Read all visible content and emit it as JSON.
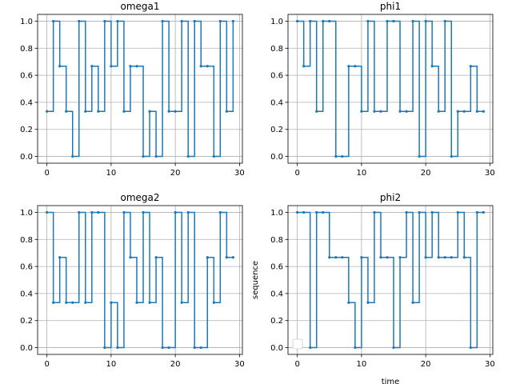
{
  "chart_data": [
    {
      "type": "line",
      "title": "omega1",
      "xlabel": "",
      "ylabel": "",
      "xlim": [
        -1.45,
        30.45
      ],
      "ylim": [
        -0.05,
        1.05
      ],
      "xticks": [
        0,
        10,
        20,
        30
      ],
      "yticks": [
        0.0,
        0.2,
        0.4,
        0.6,
        0.8,
        1.0
      ],
      "tick_labels_x": [
        "0",
        "10",
        "20",
        "30"
      ],
      "tick_labels_y": [
        "0.0",
        "0.2",
        "0.4",
        "0.6",
        "0.8",
        "1.0"
      ],
      "grid": true,
      "step": "post",
      "series": [
        {
          "color": "#1f77b4",
          "x": [
            0,
            1,
            2,
            3,
            4,
            5,
            6,
            7,
            8,
            9,
            10,
            11,
            12,
            13,
            14,
            15,
            16,
            17,
            18,
            19,
            20,
            21,
            22,
            23,
            24,
            25,
            26,
            27,
            28,
            29
          ],
          "values": [
            0.333,
            1,
            0.667,
            0.333,
            0,
            1,
            0.333,
            0.667,
            0.333,
            1,
            0.667,
            1,
            0.333,
            0.667,
            0.667,
            0,
            0.333,
            0,
            1,
            0.333,
            0.333,
            1,
            0,
            1,
            0.667,
            0.667,
            0,
            1,
            0.333,
            1
          ]
        }
      ]
    },
    {
      "type": "line",
      "title": "phi1",
      "xlabel": "",
      "ylabel": "",
      "xlim": [
        -1.45,
        30.45
      ],
      "ylim": [
        -0.05,
        1.05
      ],
      "xticks": [
        0,
        10,
        20,
        30
      ],
      "yticks": [
        0.0,
        0.2,
        0.4,
        0.6,
        0.8,
        1.0
      ],
      "tick_labels_x": [
        "0",
        "10",
        "20",
        "30"
      ],
      "tick_labels_y": [
        "0.0",
        "0.2",
        "0.4",
        "0.6",
        "0.8",
        "1.0"
      ],
      "grid": true,
      "step": "post",
      "series": [
        {
          "color": "#1f77b4",
          "x": [
            0,
            1,
            2,
            3,
            4,
            5,
            6,
            7,
            8,
            9,
            10,
            11,
            12,
            13,
            14,
            15,
            16,
            17,
            18,
            19,
            20,
            21,
            22,
            23,
            24,
            25,
            26,
            27,
            28,
            29
          ],
          "values": [
            1,
            0.667,
            1,
            0.333,
            1,
            1,
            0,
            0,
            0.667,
            0.667,
            0.333,
            1,
            0.333,
            0.333,
            1,
            1,
            0.333,
            0.333,
            1,
            0,
            1,
            0.667,
            0.333,
            1,
            0,
            0.333,
            0.333,
            0.667,
            0.333,
            0.333
          ]
        }
      ]
    },
    {
      "type": "line",
      "title": "omega2",
      "xlabel": "",
      "ylabel": "",
      "xlim": [
        -1.45,
        30.45
      ],
      "ylim": [
        -0.05,
        1.05
      ],
      "xticks": [
        0,
        10,
        20,
        30
      ],
      "yticks": [
        0.0,
        0.2,
        0.4,
        0.6,
        0.8,
        1.0
      ],
      "tick_labels_x": [
        "0",
        "10",
        "20",
        "30"
      ],
      "tick_labels_y": [
        "0.0",
        "0.2",
        "0.4",
        "0.6",
        "0.8",
        "1.0"
      ],
      "grid": true,
      "step": "post",
      "series": [
        {
          "color": "#1f77b4",
          "x": [
            0,
            1,
            2,
            3,
            4,
            5,
            6,
            7,
            8,
            9,
            10,
            11,
            12,
            13,
            14,
            15,
            16,
            17,
            18,
            19,
            20,
            21,
            22,
            23,
            24,
            25,
            26,
            27,
            28,
            29
          ],
          "values": [
            1,
            0.333,
            0.667,
            0.333,
            0.333,
            1,
            0.333,
            1,
            1,
            0,
            0.333,
            0,
            1,
            0.667,
            0.333,
            1,
            0.333,
            0.667,
            0,
            0,
            1,
            0.333,
            1,
            0,
            0,
            0.667,
            0.333,
            1,
            0.667,
            0.667
          ]
        }
      ]
    },
    {
      "type": "line",
      "title": "phi2",
      "xlabel": "time",
      "ylabel": "sequence",
      "xlim": [
        -1.45,
        30.45
      ],
      "ylim": [
        -0.05,
        1.05
      ],
      "xticks": [
        0,
        10,
        20,
        30
      ],
      "yticks": [
        0.0,
        0.2,
        0.4,
        0.6,
        0.8,
        1.0
      ],
      "tick_labels_x": [
        "0",
        "10",
        "20",
        "30"
      ],
      "tick_labels_y": [
        "0.0",
        "0.2",
        "0.4",
        "0.6",
        "0.8",
        "1.0"
      ],
      "grid": true,
      "legend": "lower-left",
      "step": "post",
      "series": [
        {
          "color": "#1f77b4",
          "x": [
            0,
            1,
            2,
            3,
            4,
            5,
            6,
            7,
            8,
            9,
            10,
            11,
            12,
            13,
            14,
            15,
            16,
            17,
            18,
            19,
            20,
            21,
            22,
            23,
            24,
            25,
            26,
            27,
            28,
            29
          ],
          "values": [
            1,
            1,
            0,
            1,
            1,
            0.667,
            0.667,
            0.667,
            0.333,
            0,
            0.667,
            0.333,
            1,
            0.667,
            0.667,
            0,
            0.667,
            1,
            0.333,
            1,
            0.667,
            1,
            0.667,
            0.667,
            0.667,
            1,
            0.667,
            0,
            1,
            1
          ]
        }
      ]
    }
  ]
}
